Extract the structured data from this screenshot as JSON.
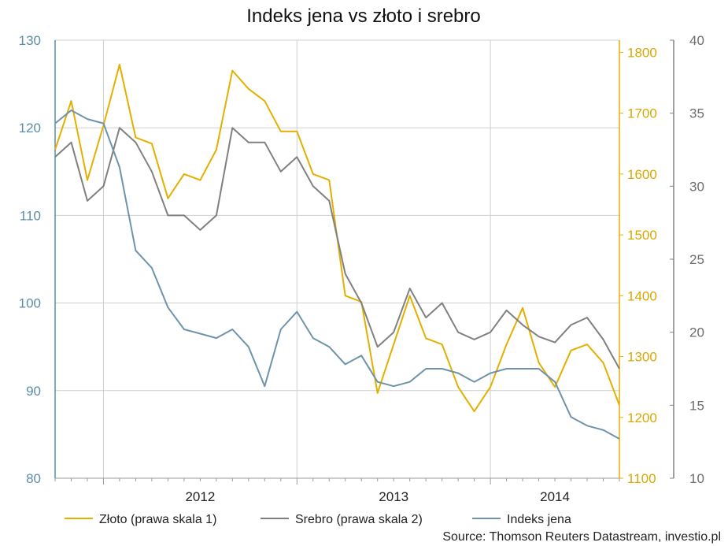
{
  "chart_data": {
    "type": "line",
    "title": "Indeks jena vs złoto i srebro",
    "source": "Source: Thomson Reuters Datastream, investio.pl",
    "x_ticks": [
      "2012",
      "2013",
      "2014"
    ],
    "x_range": [
      "2011-10",
      "2014-09"
    ],
    "axes": {
      "left": {
        "ylim": [
          80,
          130
        ],
        "ticks": [
          "80",
          "90",
          "100",
          "110",
          "120",
          "130"
        ],
        "color": "#5a8fa8"
      },
      "right1": {
        "ylim": [
          1100,
          1820
        ],
        "ticks": [
          "1100",
          "1200",
          "1300",
          "1400",
          "1500",
          "1600",
          "1700",
          "1800"
        ],
        "color": "#d9a800"
      },
      "right2": {
        "ylim": [
          10,
          40
        ],
        "ticks": [
          "10",
          "15",
          "20",
          "25",
          "30",
          "35",
          "40"
        ],
        "color": "#6d6d6d"
      }
    },
    "grid": true,
    "legend_position": "bottom",
    "series": [
      {
        "name": "Złoto (prawa skala 1)",
        "axis": "right1",
        "color": "#e3b000",
        "points": [
          [
            "2011-10",
            1640
          ],
          [
            "2011-11",
            1720
          ],
          [
            "2011-12",
            1590
          ],
          [
            "2012-01",
            1680
          ],
          [
            "2012-02",
            1780
          ],
          [
            "2012-03",
            1660
          ],
          [
            "2012-04",
            1650
          ],
          [
            "2012-05",
            1560
          ],
          [
            "2012-06",
            1600
          ],
          [
            "2012-07",
            1590
          ],
          [
            "2012-08",
            1640
          ],
          [
            "2012-09",
            1770
          ],
          [
            "2012-10",
            1740
          ],
          [
            "2012-11",
            1720
          ],
          [
            "2012-12",
            1670
          ],
          [
            "2013-01",
            1670
          ],
          [
            "2013-02",
            1600
          ],
          [
            "2013-03",
            1590
          ],
          [
            "2013-04",
            1400
          ],
          [
            "2013-05",
            1390
          ],
          [
            "2013-06",
            1240
          ],
          [
            "2013-07",
            1320
          ],
          [
            "2013-08",
            1400
          ],
          [
            "2013-09",
            1330
          ],
          [
            "2013-10",
            1320
          ],
          [
            "2013-11",
            1250
          ],
          [
            "2013-12",
            1210
          ],
          [
            "2014-01",
            1250
          ],
          [
            "2014-02",
            1320
          ],
          [
            "2014-03",
            1380
          ],
          [
            "2014-04",
            1290
          ],
          [
            "2014-05",
            1250
          ],
          [
            "2014-06",
            1310
          ],
          [
            "2014-07",
            1320
          ],
          [
            "2014-08",
            1290
          ],
          [
            "2014-09",
            1220
          ]
        ]
      },
      {
        "name": "Srebro (prawa skala 2)",
        "axis": "right2",
        "color": "#808080",
        "points": [
          [
            "2011-10",
            32
          ],
          [
            "2011-11",
            33
          ],
          [
            "2011-12",
            29
          ],
          [
            "2012-01",
            30
          ],
          [
            "2012-02",
            34
          ],
          [
            "2012-03",
            33
          ],
          [
            "2012-04",
            31
          ],
          [
            "2012-05",
            28
          ],
          [
            "2012-06",
            28
          ],
          [
            "2012-07",
            27
          ],
          [
            "2012-08",
            28
          ],
          [
            "2012-09",
            34
          ],
          [
            "2012-10",
            33
          ],
          [
            "2012-11",
            33
          ],
          [
            "2012-12",
            31
          ],
          [
            "2013-01",
            32
          ],
          [
            "2013-02",
            30
          ],
          [
            "2013-03",
            29
          ],
          [
            "2013-04",
            24
          ],
          [
            "2013-05",
            22
          ],
          [
            "2013-06",
            19
          ],
          [
            "2013-07",
            20
          ],
          [
            "2013-08",
            23
          ],
          [
            "2013-09",
            21
          ],
          [
            "2013-10",
            22
          ],
          [
            "2013-11",
            20
          ],
          [
            "2013-12",
            19.5
          ],
          [
            "2014-01",
            20
          ],
          [
            "2014-02",
            21.5
          ],
          [
            "2014-03",
            20.5
          ],
          [
            "2014-04",
            19.7
          ],
          [
            "2014-05",
            19.3
          ],
          [
            "2014-06",
            20.5
          ],
          [
            "2014-07",
            21
          ],
          [
            "2014-08",
            19.5
          ],
          [
            "2014-09",
            17.5
          ]
        ]
      },
      {
        "name": "Indeks jena",
        "axis": "left",
        "color": "#6e93aa",
        "points": [
          [
            "2011-10",
            120.5
          ],
          [
            "2011-11",
            122
          ],
          [
            "2011-12",
            121
          ],
          [
            "2012-01",
            120.5
          ],
          [
            "2012-02",
            115.5
          ],
          [
            "2012-03",
            106
          ],
          [
            "2012-04",
            104
          ],
          [
            "2012-05",
            99.5
          ],
          [
            "2012-06",
            97
          ],
          [
            "2012-07",
            96.5
          ],
          [
            "2012-08",
            96
          ],
          [
            "2012-09",
            97
          ],
          [
            "2012-10",
            95
          ],
          [
            "2012-11",
            90.5
          ],
          [
            "2012-12",
            97
          ],
          [
            "2013-01",
            99
          ],
          [
            "2013-02",
            96
          ],
          [
            "2013-03",
            95
          ],
          [
            "2013-04",
            93
          ],
          [
            "2013-05",
            94
          ],
          [
            "2013-06",
            91
          ],
          [
            "2013-07",
            90.5
          ],
          [
            "2013-08",
            91
          ],
          [
            "2013-09",
            92.5
          ],
          [
            "2013-10",
            92.5
          ],
          [
            "2013-11",
            92
          ],
          [
            "2013-12",
            91
          ],
          [
            "2014-01",
            92
          ],
          [
            "2014-02",
            92.5
          ],
          [
            "2014-03",
            92.5
          ],
          [
            "2014-04",
            92.5
          ],
          [
            "2014-05",
            91
          ],
          [
            "2014-06",
            87
          ],
          [
            "2014-07",
            86
          ],
          [
            "2014-08",
            85.5
          ],
          [
            "2014-09",
            84.5
          ]
        ]
      }
    ]
  }
}
